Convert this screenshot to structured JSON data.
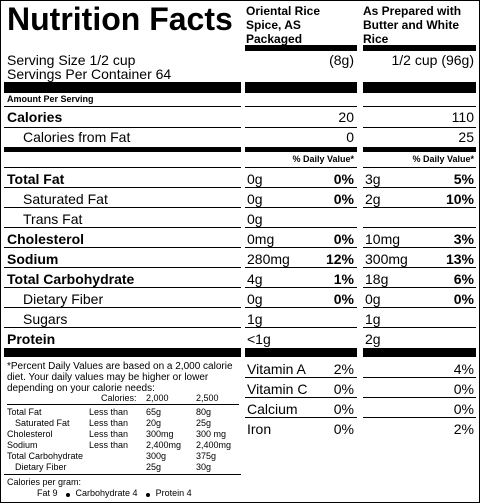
{
  "header": {
    "title": "Nutrition Facts",
    "col_a": "Oriental Rice Spice, AS Packaged",
    "col_b": "As Prepared with Butter and White Rice"
  },
  "serving": {
    "size": "Serving Size 1/2 cup",
    "per_container": "Servings Per Container 64",
    "size_a": "(8g)",
    "size_b": "1/2 cup (96g)"
  },
  "amount_per_serving": "Amount Per Serving",
  "calories": {
    "label": "Calories",
    "a": "20",
    "b": "110"
  },
  "calories_from_fat": {
    "label": "Calories from Fat",
    "a": "0",
    "b": "25"
  },
  "dv_header": {
    "a": "% Daily Value*",
    "b": "% Daily Value*"
  },
  "nutrients": [
    {
      "label": "Total Fat",
      "level": 1,
      "amount_a": "0g",
      "dv_a": "0%",
      "amount_b": "3g",
      "dv_b": "5%"
    },
    {
      "label": "Saturated Fat",
      "level": 2,
      "amount_a": "0g",
      "dv_a": "0%",
      "amount_b": "2g",
      "dv_b": "10%"
    },
    {
      "label": "Trans Fat",
      "level": 2,
      "amount_a": "0g"
    },
    {
      "label": "Cholesterol",
      "level": 1,
      "amount_a": "0mg",
      "dv_a": "0%",
      "amount_b": "10mg",
      "dv_b": "3%"
    },
    {
      "label": "Sodium",
      "level": 1,
      "amount_a": "280mg",
      "dv_a": "12%",
      "amount_b": "300mg",
      "dv_b": "13%"
    },
    {
      "label": "Total Carbohydrate",
      "level": 1,
      "amount_a": "4g",
      "dv_a": "1%",
      "amount_b": "18g",
      "dv_b": "6%"
    },
    {
      "label": "Dietary Fiber",
      "level": 2,
      "amount_a": "0g",
      "dv_a": "0%",
      "amount_b": "0g",
      "dv_b": "0%"
    },
    {
      "label": "Sugars",
      "level": 2,
      "amount_a": "1g",
      "amount_b": "1g"
    },
    {
      "label": "Protein",
      "level": 1,
      "amount_a": "<1g",
      "amount_b": "2g"
    }
  ],
  "vitamins": [
    {
      "label": "Vitamin A",
      "a": "2%",
      "b": "4%"
    },
    {
      "label": "Vitamin C",
      "a": "0%",
      "b": "0%"
    },
    {
      "label": "Calcium",
      "a": "0%",
      "b": "0%"
    },
    {
      "label": "Iron",
      "a": "0%",
      "b": "2%"
    }
  ],
  "footnote": {
    "text": "*Percent Daily Values are based on a 2,000 calorie diet. Your daily values may be higher or lower depending on your calorie needs:",
    "table_header": {
      "label": "Calories:",
      "cal_2000": "2,000",
      "cal_2500": "2,500"
    },
    "rows": [
      {
        "label": "Total Fat",
        "level": 1,
        "limit": "Less than",
        "cal_2000": "65g",
        "cal_2500": "80g"
      },
      {
        "label": "Saturated Fat",
        "level": 2,
        "limit": "Less than",
        "cal_2000": "20g",
        "cal_2500": "25g"
      },
      {
        "label": "Cholesterol",
        "level": 1,
        "limit": "Less than",
        "cal_2000": "300mg",
        "cal_2500": "300 mg"
      },
      {
        "label": "Sodium",
        "level": 1,
        "limit": "Less than",
        "cal_2000": "2,400mg",
        "cal_2500": "2,400mg"
      },
      {
        "label": "Total Carbohydrate",
        "level": 1,
        "cal_2000": "300g",
        "cal_2500": "375g"
      },
      {
        "label": "Dietary Fiber",
        "level": 2,
        "cal_2000": "25g",
        "cal_2500": "30g"
      }
    ],
    "calories_per_gram": {
      "label": "Calories per gram:",
      "items": [
        "Fat 9",
        "Carbohydrate 4",
        "Protein 4"
      ]
    }
  }
}
